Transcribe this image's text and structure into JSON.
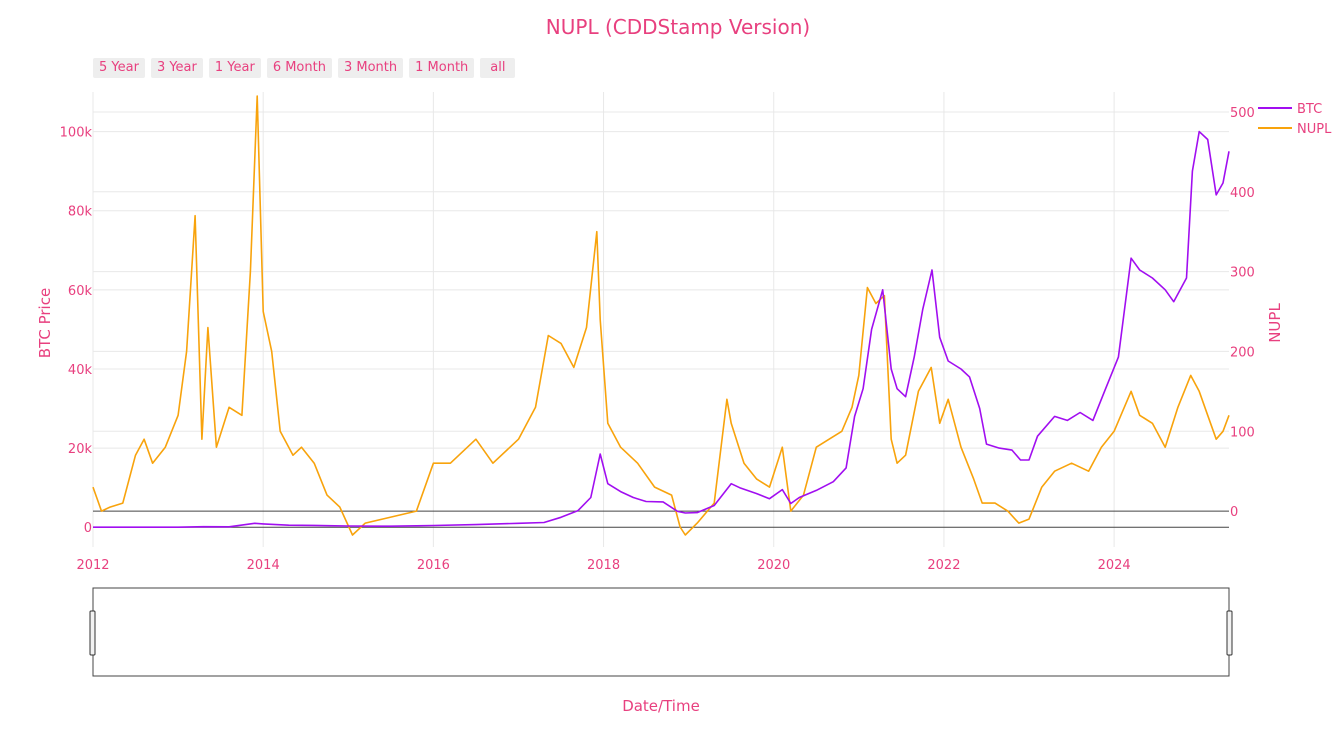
{
  "header": {
    "title": "NUPL (CDDStamp Version)",
    "range_buttons": [
      "5 Year",
      "3 Year",
      "1 Year",
      "6 Month",
      "3 Month",
      "1 Month",
      "all"
    ]
  },
  "colors": {
    "text": "#e8407f",
    "btc": "#a10ef0",
    "nupl": "#f8a30c",
    "grid": "#e8e8e8"
  },
  "chart_data": {
    "type": "line",
    "title": "NUPL (CDDStamp Version)",
    "xlabel": "Date/Time",
    "ylabel": "BTC Price",
    "y2label": "NUPL",
    "xlim": [
      2012.0,
      2025.35
    ],
    "ylim": [
      -5000,
      110000
    ],
    "y2lim": [
      -45,
      525
    ],
    "x_ticks": [
      2012,
      2014,
      2016,
      2018,
      2020,
      2022,
      2024
    ],
    "x_tick_labels": [
      "2012",
      "2014",
      "2016",
      "2018",
      "2020",
      "2022",
      "2024"
    ],
    "y_ticks": [
      0,
      20000,
      40000,
      60000,
      80000,
      100000
    ],
    "y_tick_labels": [
      "0",
      "20k",
      "40k",
      "60k",
      "80k",
      "100k"
    ],
    "y2_ticks": [
      0,
      100,
      200,
      300,
      400,
      500
    ],
    "y2_tick_labels": [
      "0",
      "100",
      "200",
      "300",
      "400",
      "500"
    ],
    "grid": true,
    "legend_position": "top-right",
    "series": [
      {
        "name": "BTC",
        "axis": "left",
        "x": [
          2012.0,
          2012.5,
          2013.0,
          2013.3,
          2013.6,
          2013.9,
          2014.0,
          2014.3,
          2014.6,
          2015.0,
          2015.5,
          2016.0,
          2016.5,
          2017.0,
          2017.3,
          2017.5,
          2017.7,
          2017.85,
          2017.96,
          2018.05,
          2018.2,
          2018.35,
          2018.5,
          2018.7,
          2018.87,
          2018.96,
          2019.1,
          2019.3,
          2019.5,
          2019.6,
          2019.8,
          2019.95,
          2020.1,
          2020.2,
          2020.3,
          2020.5,
          2020.7,
          2020.85,
          2020.95,
          2021.05,
          2021.15,
          2021.28,
          2021.38,
          2021.45,
          2021.55,
          2021.65,
          2021.75,
          2021.86,
          2021.95,
          2022.05,
          2022.2,
          2022.3,
          2022.42,
          2022.5,
          2022.65,
          2022.8,
          2022.9,
          2023.0,
          2023.1,
          2023.3,
          2023.45,
          2023.6,
          2023.75,
          2023.9,
          2024.05,
          2024.2,
          2024.3,
          2024.45,
          2024.6,
          2024.7,
          2024.85,
          2024.92,
          2025.0,
          2025.1,
          2025.2,
          2025.28,
          2025.35
        ],
        "values": [
          5,
          10,
          14,
          120,
          100,
          1000,
          850,
          500,
          450,
          300,
          260,
          430,
          650,
          1000,
          1200,
          2500,
          4200,
          7500,
          18500,
          11000,
          9000,
          7500,
          6500,
          6400,
          4000,
          3600,
          3700,
          5500,
          11000,
          10000,
          8500,
          7200,
          9500,
          6000,
          7500,
          9300,
          11500,
          15000,
          28000,
          35000,
          50000,
          60000,
          40000,
          35000,
          33000,
          43000,
          55000,
          65000,
          48000,
          42000,
          40000,
          38000,
          30000,
          21000,
          20000,
          19500,
          17000,
          17000,
          23000,
          28000,
          27000,
          29000,
          27000,
          35000,
          43000,
          68000,
          65000,
          63000,
          60000,
          57000,
          63000,
          90000,
          100000,
          98000,
          84000,
          87000,
          95000
        ]
      },
      {
        "name": "NUPL",
        "axis": "right",
        "x": [
          2012.0,
          2012.1,
          2012.2,
          2012.35,
          2012.5,
          2012.6,
          2012.7,
          2012.85,
          2013.0,
          2013.1,
          2013.2,
          2013.28,
          2013.35,
          2013.45,
          2013.6,
          2013.75,
          2013.85,
          2013.93,
          2014.0,
          2014.1,
          2014.2,
          2014.35,
          2014.45,
          2014.6,
          2014.75,
          2014.9,
          2015.05,
          2015.2,
          2015.4,
          2015.6,
          2015.8,
          2016.0,
          2016.2,
          2016.4,
          2016.5,
          2016.7,
          2016.9,
          2017.0,
          2017.2,
          2017.35,
          2017.5,
          2017.65,
          2017.8,
          2017.92,
          2017.96,
          2018.05,
          2018.2,
          2018.4,
          2018.6,
          2018.8,
          2018.9,
          2018.96,
          2019.1,
          2019.3,
          2019.45,
          2019.5,
          2019.65,
          2019.8,
          2019.95,
          2020.1,
          2020.2,
          2020.35,
          2020.5,
          2020.65,
          2020.8,
          2020.92,
          2021.0,
          2021.1,
          2021.2,
          2021.3,
          2021.38,
          2021.45,
          2021.55,
          2021.7,
          2021.85,
          2021.95,
          2022.05,
          2022.2,
          2022.35,
          2022.45,
          2022.6,
          2022.75,
          2022.88,
          2023.0,
          2023.15,
          2023.3,
          2023.5,
          2023.7,
          2023.85,
          2024.0,
          2024.2,
          2024.3,
          2024.45,
          2024.6,
          2024.75,
          2024.9,
          2025.0,
          2025.1,
          2025.2,
          2025.28,
          2025.35
        ],
        "values": [
          30,
          0,
          5,
          10,
          70,
          90,
          60,
          80,
          120,
          200,
          370,
          90,
          230,
          80,
          130,
          120,
          300,
          520,
          250,
          200,
          100,
          70,
          80,
          60,
          20,
          5,
          -30,
          -15,
          -10,
          -5,
          0,
          60,
          60,
          80,
          90,
          60,
          80,
          90,
          130,
          220,
          210,
          180,
          230,
          350,
          240,
          110,
          80,
          60,
          30,
          20,
          -20,
          -30,
          -15,
          10,
          140,
          110,
          60,
          40,
          30,
          80,
          0,
          20,
          80,
          90,
          100,
          130,
          170,
          280,
          260,
          270,
          90,
          60,
          70,
          150,
          180,
          110,
          140,
          80,
          40,
          10,
          10,
          0,
          -15,
          -10,
          30,
          50,
          60,
          50,
          80,
          100,
          150,
          120,
          110,
          80,
          130,
          170,
          150,
          120,
          90,
          100,
          120
        ]
      }
    ]
  }
}
